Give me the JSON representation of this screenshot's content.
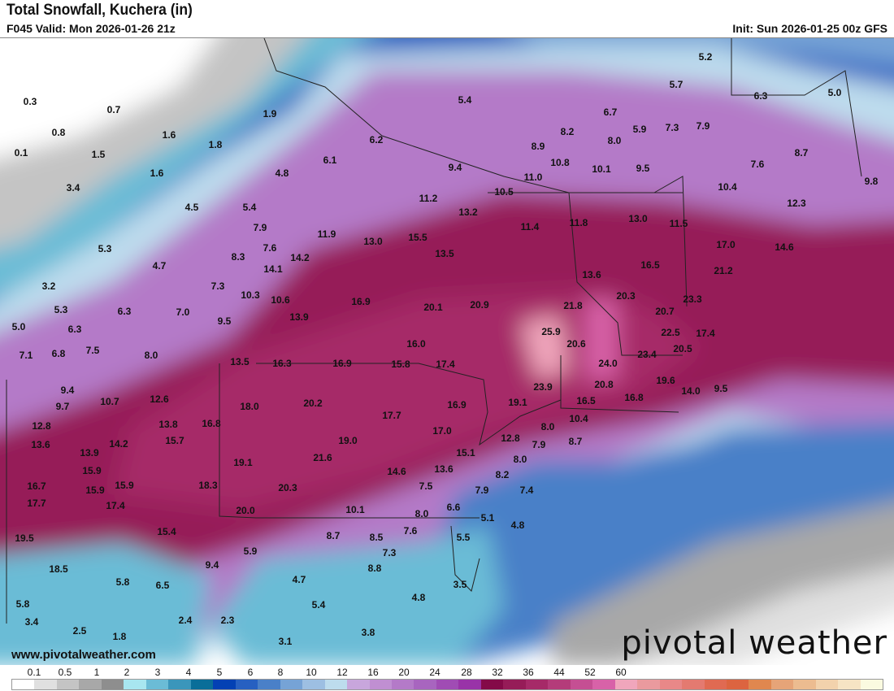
{
  "header": {
    "title": "Total Snowfall, Kuchera (in)",
    "valid": "F045 Valid: Mon 2026-01-26 21z",
    "init": "Init: Sun 2026-01-25 00z GFS"
  },
  "footer": {
    "website": "www.pivotalweather.com",
    "logo": "pivotal weather"
  },
  "legend": {
    "tick_labels": [
      "0.1",
      "0.5",
      "1",
      "2",
      "3",
      "4",
      "5",
      "6",
      "8",
      "10",
      "12",
      "16",
      "20",
      "24",
      "28",
      "32",
      "36",
      "44",
      "52",
      "60"
    ],
    "colors": [
      "#ffffff",
      "#e0e0e0",
      "#c4c4c4",
      "#a8a8a8",
      "#8e8e8e",
      "#a8e6f0",
      "#6bbcd6",
      "#3b96bb",
      "#0a6e99",
      "#0341b4",
      "#2760c1",
      "#4a80c8",
      "#76a3d6",
      "#9dbfe2",
      "#bddced",
      "#c8a6dc",
      "#c08fd2",
      "#b47ac8",
      "#a865bf",
      "#a04cb4",
      "#9933a8",
      "#840a48",
      "#961c58",
      "#a62a68",
      "#b43c7a",
      "#c54f93",
      "#d862a8",
      "#f0a6bc",
      "#ea9a9e",
      "#e88888",
      "#e47a70",
      "#e06a52",
      "#dc6440",
      "#e0874f",
      "#e6a478",
      "#ecbc90",
      "#f2d2ac",
      "#f6e4c4",
      "#fafae0"
    ]
  },
  "map": {
    "values": [
      "0.3",
      "0.7",
      "0.8",
      "1.6",
      "1.8",
      "1.9",
      "5.4",
      "5.2",
      "5.7",
      "6.3",
      "5.0",
      "6.7",
      "8.2",
      "5.9",
      "7.3",
      "7.9",
      "8.0",
      "0.1",
      "1.5",
      "1.6",
      "6.2",
      "8.9",
      "10.8",
      "10.1",
      "9.5",
      "8.7",
      "7.6",
      "4.8",
      "6.1",
      "9.4",
      "11.0",
      "3.4",
      "4.5",
      "5.4",
      "11.2",
      "10.5",
      "10.4",
      "9.8",
      "13.2",
      "11.4",
      "11.8",
      "13.0",
      "11.5",
      "12.3",
      "7.9",
      "11.9",
      "13.0",
      "15.5",
      "17.0",
      "14.6",
      "5.3",
      "7.6",
      "8.3",
      "14.2",
      "13.5",
      "4.7",
      "14.1",
      "13.6",
      "16.5",
      "21.2",
      "3.2",
      "7.3",
      "10.3",
      "10.6",
      "16.9",
      "20.1",
      "20.9",
      "21.8",
      "20.3",
      "20.7",
      "23.3",
      "5.3",
      "6.3",
      "7.0",
      "13.9",
      "9.5",
      "25.9",
      "22.5",
      "17.4",
      "5.0",
      "6.3",
      "16.0",
      "20.6",
      "23.4",
      "20.5",
      "7.1",
      "6.8",
      "7.5",
      "8.0",
      "13.5",
      "16.3",
      "16.9",
      "15.8",
      "17.4",
      "24.0",
      "23.9",
      "20.8",
      "19.6",
      "14.0",
      "9.5",
      "9.4",
      "10.7",
      "12.6",
      "19.1",
      "16.5",
      "16.8",
      "9.7",
      "18.0",
      "20.2",
      "17.7",
      "16.9",
      "12.8",
      "13.8",
      "16.8",
      "17.0",
      "8.0",
      "10.4",
      "15.7",
      "19.0",
      "12.8",
      "7.9",
      "8.7",
      "13.6",
      "13.9",
      "14.2",
      "15.1",
      "21.6",
      "19.1",
      "8.0",
      "15.9",
      "14.6",
      "13.6",
      "8.2",
      "16.7",
      "15.9",
      "15.9",
      "18.3",
      "20.3",
      "7.5",
      "7.9",
      "7.4",
      "17.7",
      "17.4",
      "20.0",
      "10.1",
      "8.0",
      "6.6",
      "5.1",
      "4.8",
      "15.4",
      "8.7",
      "8.5",
      "7.6",
      "5.5",
      "19.5",
      "5.9",
      "7.3",
      "9.4",
      "8.8",
      "18.5",
      "5.8",
      "6.5",
      "4.7",
      "3.5",
      "5.8",
      "5.4",
      "4.8",
      "3.4",
      "2.4",
      "2.3",
      "3.8",
      "2.5",
      "1.8",
      "3.1"
    ]
  }
}
